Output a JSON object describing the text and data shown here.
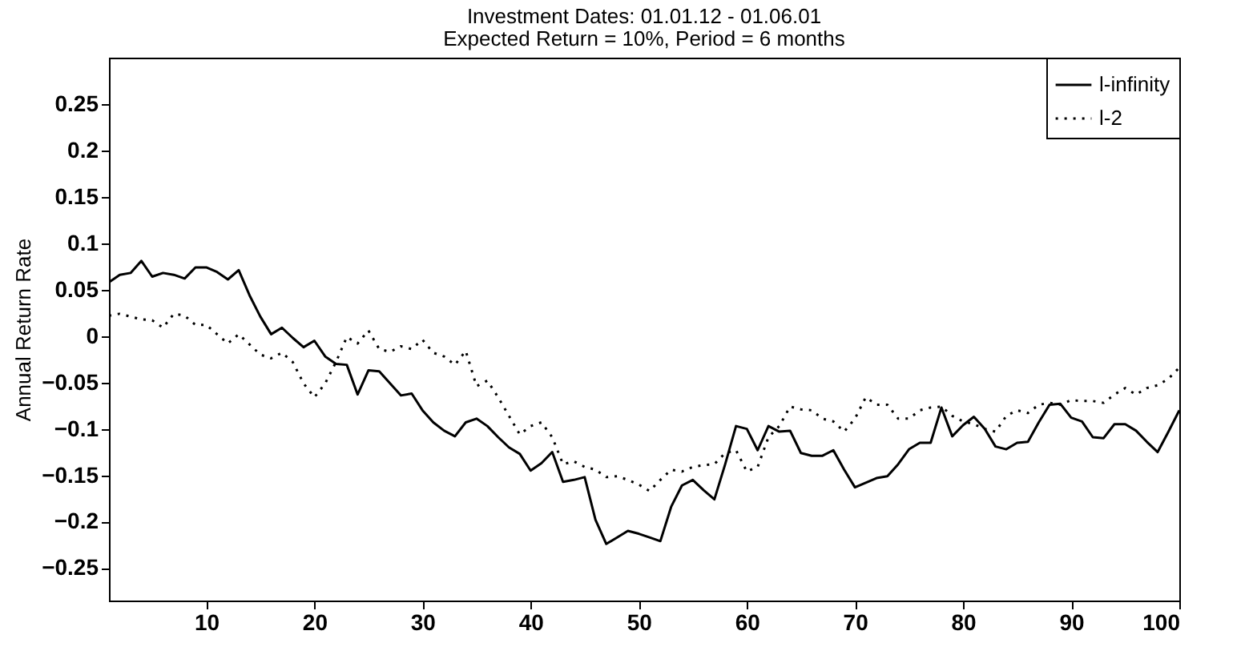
{
  "chart_data": {
    "type": "line",
    "title": "Investment Dates: 01.01.12 - 01.06.01",
    "subtitle": "Expected Return = 10%, Period = 6 months",
    "ylabel": "Annual Return Rate",
    "x": [
      1,
      2,
      3,
      4,
      5,
      6,
      7,
      8,
      9,
      10,
      11,
      12,
      13,
      14,
      15,
      16,
      17,
      18,
      19,
      20,
      21,
      22,
      23,
      24,
      25,
      26,
      27,
      28,
      29,
      30,
      31,
      32,
      33,
      34,
      35,
      36,
      37,
      38,
      39,
      40,
      41,
      42,
      43,
      44,
      45,
      46,
      47,
      48,
      49,
      50,
      51,
      52,
      53,
      54,
      55,
      56,
      57,
      58,
      59,
      60,
      61,
      62,
      63,
      64,
      65,
      66,
      67,
      68,
      69,
      70,
      71,
      72,
      73,
      74,
      75,
      76,
      77,
      78,
      79,
      80,
      81,
      82,
      83,
      84,
      85,
      86,
      87,
      88,
      89,
      90,
      91,
      92,
      93,
      94,
      95,
      96,
      97,
      98,
      99,
      100
    ],
    "series": [
      {
        "name": "l-infinity",
        "color": "#000000",
        "line_style": "solid",
        "values": [
          0.058,
          0.066,
          0.068,
          0.081,
          0.064,
          0.068,
          0.066,
          0.062,
          0.074,
          0.074,
          0.069,
          0.061,
          0.071,
          0.044,
          0.021,
          0.002,
          0.009,
          -0.002,
          -0.012,
          -0.005,
          -0.022,
          -0.03,
          -0.031,
          -0.063,
          -0.037,
          -0.038,
          -0.051,
          -0.064,
          -0.062,
          -0.08,
          -0.093,
          -0.102,
          -0.108,
          -0.093,
          -0.089,
          -0.097,
          -0.109,
          -0.12,
          -0.127,
          -0.145,
          -0.137,
          -0.125,
          -0.157,
          -0.155,
          -0.152,
          -0.198,
          -0.224,
          -0.217,
          -0.21,
          -0.213,
          -0.217,
          -0.221,
          -0.184,
          -0.161,
          -0.155,
          -0.166,
          -0.176,
          -0.138,
          -0.097,
          -0.1,
          -0.123,
          -0.097,
          -0.103,
          -0.102,
          -0.126,
          -0.129,
          -0.129,
          -0.123,
          -0.144,
          -0.163,
          -0.158,
          -0.153,
          -0.151,
          -0.138,
          -0.122,
          -0.115,
          -0.115,
          -0.077,
          -0.108,
          -0.096,
          -0.087,
          -0.1,
          -0.119,
          -0.122,
          -0.115,
          -0.114,
          -0.093,
          -0.074,
          -0.073,
          -0.088,
          -0.092,
          -0.109,
          -0.11,
          -0.095,
          -0.095,
          -0.102,
          -0.114,
          -0.125,
          -0.103,
          -0.08
        ]
      },
      {
        "name": "l-2",
        "color": "#000000",
        "line_style": "dotted",
        "values": [
          0.022,
          0.024,
          0.021,
          0.018,
          0.017,
          0.009,
          0.024,
          0.022,
          0.012,
          0.012,
          0.002,
          -0.008,
          0.002,
          -0.009,
          -0.02,
          -0.024,
          -0.018,
          -0.028,
          -0.051,
          -0.066,
          -0.051,
          -0.028,
          -0.001,
          -0.008,
          0.006,
          -0.014,
          -0.017,
          -0.011,
          -0.014,
          -0.004,
          -0.018,
          -0.022,
          -0.031,
          -0.016,
          -0.054,
          -0.048,
          -0.066,
          -0.086,
          -0.106,
          -0.097,
          -0.093,
          -0.109,
          -0.138,
          -0.135,
          -0.141,
          -0.144,
          -0.152,
          -0.151,
          -0.155,
          -0.16,
          -0.167,
          -0.155,
          -0.144,
          -0.146,
          -0.141,
          -0.139,
          -0.138,
          -0.126,
          -0.123,
          -0.146,
          -0.141,
          -0.109,
          -0.097,
          -0.076,
          -0.079,
          -0.08,
          -0.089,
          -0.092,
          -0.103,
          -0.089,
          -0.066,
          -0.074,
          -0.074,
          -0.089,
          -0.089,
          -0.08,
          -0.077,
          -0.076,
          -0.086,
          -0.092,
          -0.095,
          -0.1,
          -0.103,
          -0.086,
          -0.08,
          -0.083,
          -0.074,
          -0.072,
          -0.074,
          -0.069,
          -0.07,
          -0.07,
          -0.072,
          -0.063,
          -0.056,
          -0.063,
          -0.056,
          -0.053,
          -0.046,
          -0.034
        ]
      }
    ],
    "xlim": [
      1,
      100
    ],
    "xticks": [
      10,
      20,
      30,
      40,
      50,
      60,
      70,
      80,
      90,
      100
    ],
    "ylim": [
      -0.285,
      0.3
    ],
    "yticks": [
      -0.25,
      -0.2,
      -0.15,
      -0.1,
      -0.05,
      0,
      0.05,
      0.1,
      0.15,
      0.2,
      0.25
    ],
    "legend": "top right",
    "grid": false,
    "marker": "none"
  }
}
